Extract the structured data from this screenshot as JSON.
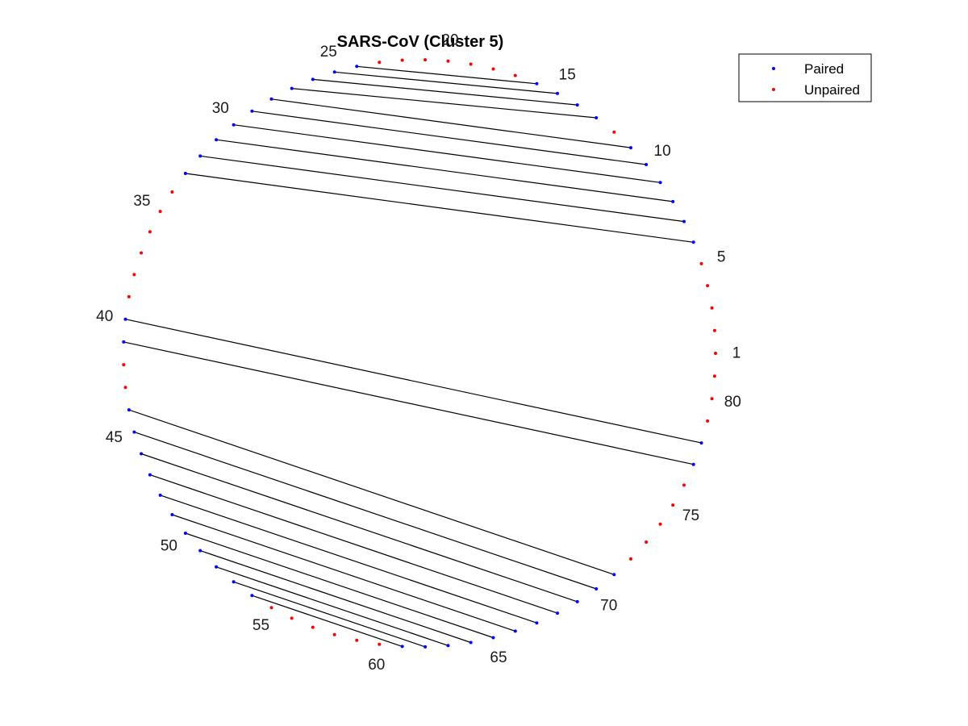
{
  "title": "SARS-CoV (Cluster 5)",
  "legend": {
    "placement": "top-right",
    "entries": [
      {
        "name": "Paired",
        "color": "#0000ff"
      },
      {
        "name": "Unpaired",
        "color": "#ff0000"
      }
    ]
  },
  "chart_data": {
    "type": "arc-diagram",
    "n_positions": 81,
    "start_position": 1,
    "direction": "counterclockwise",
    "labeled_positions": [
      1,
      5,
      10,
      15,
      20,
      25,
      30,
      35,
      40,
      45,
      50,
      55,
      60,
      65,
      70,
      75,
      80
    ],
    "paired_color": "#0000ff",
    "unpaired_color": "#ff0000",
    "pairs": [
      [
        6,
        33
      ],
      [
        7,
        32
      ],
      [
        8,
        31
      ],
      [
        9,
        30
      ],
      [
        10,
        29
      ],
      [
        11,
        28
      ],
      [
        13,
        27
      ],
      [
        14,
        26
      ],
      [
        15,
        25
      ],
      [
        16,
        24
      ],
      [
        40,
        78
      ],
      [
        41,
        77
      ],
      [
        44,
        71
      ],
      [
        45,
        70
      ],
      [
        46,
        69
      ],
      [
        47,
        68
      ],
      [
        48,
        67
      ],
      [
        49,
        66
      ],
      [
        50,
        65
      ],
      [
        51,
        64
      ],
      [
        52,
        63
      ],
      [
        53,
        62
      ],
      [
        54,
        61
      ]
    ]
  }
}
